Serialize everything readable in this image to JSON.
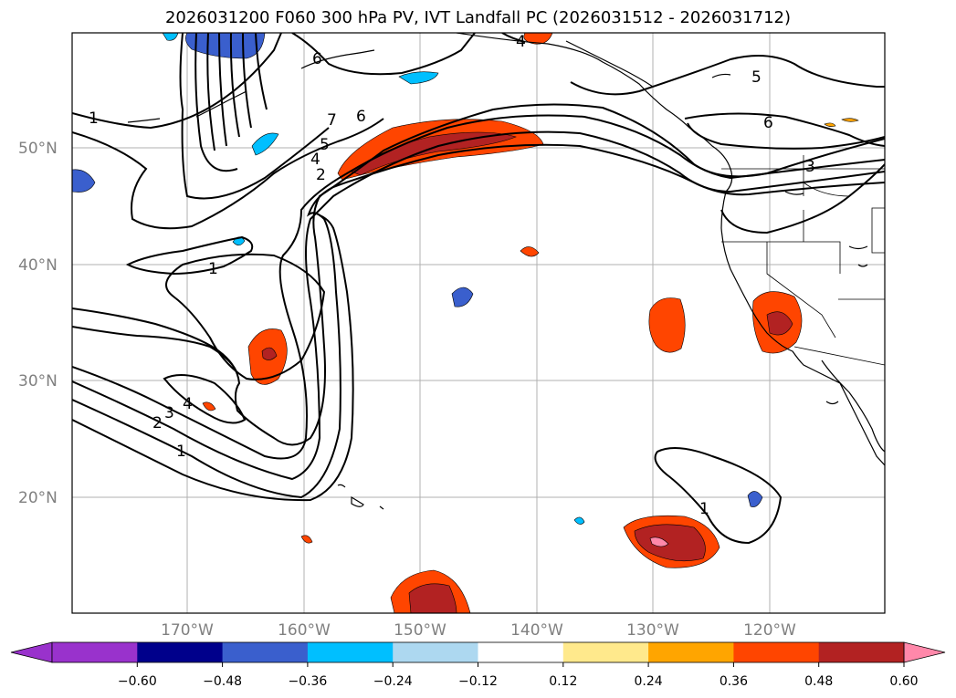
{
  "title": "2026031200 F060 300 hPa PV, IVT Landfall PC (2026031512 - 2026031712)",
  "lat_labels": [
    "50°N",
    "40°N",
    "30°N",
    "20°N"
  ],
  "lon_labels": [
    "170°W",
    "160°W",
    "150°W",
    "140°W",
    "130°W",
    "120°W"
  ],
  "colorbar": {
    "ticks": [
      "−0.60",
      "−0.48",
      "−0.36",
      "−0.24",
      "−0.12",
      "0.12",
      "0.24",
      "0.36",
      "0.48",
      "0.60"
    ],
    "colors": [
      "#9932cc",
      "#00008b",
      "#3a5fcd",
      "#00bfff",
      "#add8f0",
      "#ffffff",
      "#ffe98c",
      "#ffa500",
      "#ff4500",
      "#b22222",
      "#ff88aa",
      "#ff88aa"
    ]
  },
  "contour_labels": {
    "c1_nw": "1",
    "c6_top": "6",
    "c7": "7",
    "c6_mid": "6",
    "c5": "5",
    "c4": "4",
    "c2": "2",
    "c4_top": "4",
    "c5_ne": "5",
    "c6_ne": "6",
    "c3_coast": "3",
    "c1_west": "1",
    "c4_sw": "4",
    "c3_sw": "3",
    "c2_sw": "2",
    "c1_sw": "1",
    "c1_se": "1"
  },
  "colors": {
    "contour": "#000000",
    "grid": "#b0b0b0",
    "coast": "#000000"
  }
}
